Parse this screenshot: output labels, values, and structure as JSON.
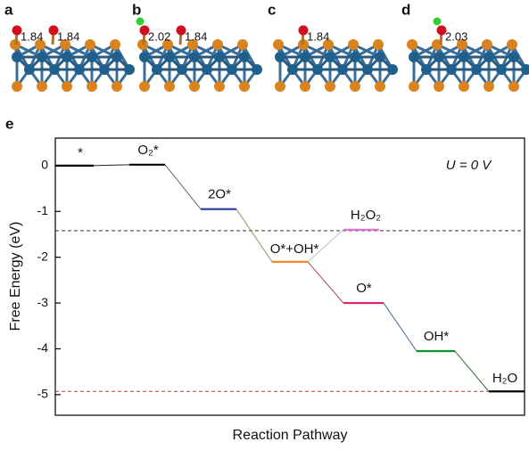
{
  "panels": [
    {
      "label": "a",
      "bonds": [
        1.84,
        1.84
      ]
    },
    {
      "label": "b",
      "bonds": [
        2.02,
        1.84
      ]
    },
    {
      "label": "c",
      "bonds": [
        1.84
      ]
    },
    {
      "label": "d",
      "bonds": [
        2.03
      ]
    }
  ],
  "chart_data": {
    "type": "energy-levels",
    "panel_label": "e",
    "annotation": "U = 0 V",
    "y_label": "Free Energy (eV)",
    "x_label": "Reaction Pathway",
    "ylim": [
      -5.45,
      0.6
    ],
    "yticks": [
      0,
      -1,
      -2,
      -3,
      -4,
      -5
    ],
    "levels": [
      {
        "name": "*",
        "value": 0,
        "color": "#000000"
      },
      {
        "name": "O₂*",
        "value": 0.02,
        "color": "#000000"
      },
      {
        "name": "2O*",
        "value": -0.95,
        "color": "#2a3a9a"
      },
      {
        "name": "O*+OH*",
        "value": -2.1,
        "color": "#f08020"
      },
      {
        "name": "H₂O₂",
        "value": -1.4,
        "color": "#e070d0"
      },
      {
        "name": "O*",
        "value": -3.0,
        "color": "#e0206a"
      },
      {
        "name": "OH*",
        "value": -4.05,
        "color": "#109030"
      },
      {
        "name": "H₂O",
        "value": -4.93,
        "color": "#000000"
      }
    ],
    "reference_lines": [
      {
        "value": -1.42,
        "color": "#333333"
      },
      {
        "value": -4.93,
        "color": "#b04040"
      }
    ]
  }
}
